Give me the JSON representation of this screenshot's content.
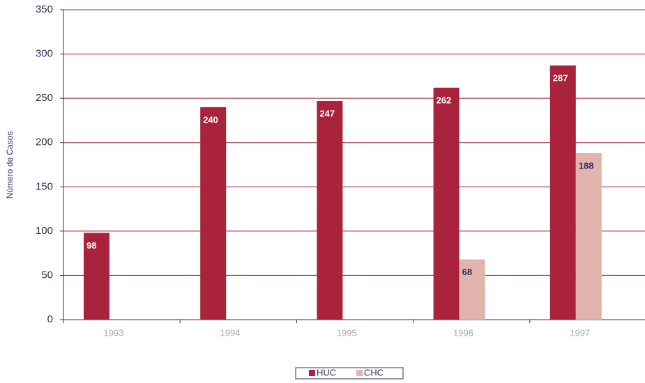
{
  "chart_data": {
    "type": "bar",
    "y_label": "Número de Casos",
    "categories": [
      "1993",
      "1994",
      "1995",
      "1996",
      "1997"
    ],
    "series": [
      {
        "name": "HUC",
        "color": "#a8233b",
        "values": [
          98,
          240,
          247,
          262,
          287
        ]
      },
      {
        "name": "CHC",
        "color": "#e3b3ae",
        "values": [
          null,
          null,
          null,
          68,
          188
        ]
      }
    ],
    "ylim": [
      0,
      350
    ],
    "yticks": [
      0,
      50,
      100,
      150,
      200,
      250,
      300,
      350
    ],
    "grid": true,
    "legend": "bottom"
  }
}
